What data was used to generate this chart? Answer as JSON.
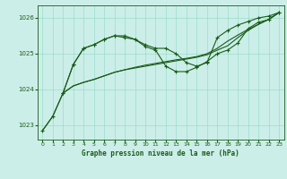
{
  "title": "Graphe pression niveau de la mer (hPa)",
  "bg_color": "#cceee8",
  "grid_color": "#99ddcc",
  "line_color": "#1a5c1a",
  "xlim": [
    -0.5,
    23.5
  ],
  "ylim": [
    1022.6,
    1026.35
  ],
  "yticks": [
    1023,
    1024,
    1025,
    1026
  ],
  "xticks": [
    0,
    1,
    2,
    3,
    4,
    5,
    6,
    7,
    8,
    9,
    10,
    11,
    12,
    13,
    14,
    15,
    16,
    17,
    18,
    19,
    20,
    21,
    22,
    23
  ],
  "series1_marked": {
    "x": [
      0,
      1,
      2,
      3,
      4,
      5,
      6,
      7,
      8,
      9,
      10,
      11,
      12,
      13,
      14,
      15,
      16,
      17,
      18,
      19,
      20,
      21,
      22,
      23
    ],
    "y": [
      1022.85,
      1023.25,
      1023.9,
      1024.7,
      1025.15,
      1025.25,
      1025.4,
      1025.5,
      1025.45,
      1025.4,
      1025.25,
      1025.15,
      1025.15,
      1025.0,
      1024.75,
      1024.65,
      1024.75,
      1025.45,
      1025.65,
      1025.8,
      1025.9,
      1026.0,
      1026.05,
      1026.15
    ]
  },
  "series2_smooth": {
    "x": [
      0,
      1,
      2,
      3,
      4,
      5,
      6,
      7,
      8,
      9,
      10,
      11,
      12,
      13,
      14,
      15,
      16,
      17,
      18,
      19,
      20,
      21,
      22,
      23
    ],
    "y": [
      1022.85,
      1023.25,
      1023.9,
      1024.1,
      1024.2,
      1024.28,
      1024.38,
      1024.48,
      1024.55,
      1024.62,
      1024.68,
      1024.73,
      1024.78,
      1024.83,
      1024.87,
      1024.92,
      1025.0,
      1025.15,
      1025.35,
      1025.52,
      1025.68,
      1025.82,
      1025.96,
      1026.15
    ]
  },
  "series3_marked": {
    "x": [
      2,
      3,
      4,
      5,
      6,
      7,
      8,
      9,
      10,
      11,
      12,
      13,
      14,
      15,
      16,
      17,
      18,
      19,
      20,
      21,
      22,
      23
    ],
    "y": [
      1023.9,
      1024.7,
      1025.15,
      1025.25,
      1025.4,
      1025.5,
      1025.5,
      1025.4,
      1025.2,
      1025.1,
      1024.65,
      1024.5,
      1024.5,
      1024.62,
      1024.78,
      1025.0,
      1025.1,
      1025.3,
      1025.7,
      1025.88,
      1025.95,
      1026.15
    ]
  },
  "series4_smooth": {
    "x": [
      2,
      3,
      4,
      5,
      6,
      7,
      8,
      9,
      10,
      11,
      12,
      13,
      14,
      15,
      16,
      17,
      18,
      19,
      20,
      21,
      22,
      23
    ],
    "y": [
      1023.9,
      1024.1,
      1024.2,
      1024.28,
      1024.38,
      1024.48,
      1024.55,
      1024.6,
      1024.65,
      1024.7,
      1024.75,
      1024.8,
      1024.85,
      1024.9,
      1024.97,
      1025.1,
      1025.22,
      1025.45,
      1025.65,
      1025.82,
      1025.96,
      1026.15
    ]
  }
}
